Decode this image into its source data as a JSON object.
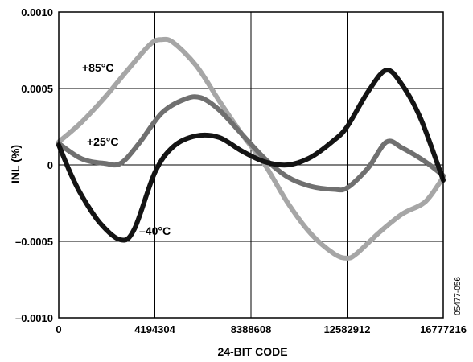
{
  "chart_data": {
    "type": "line",
    "title": "",
    "xlabel": "24-BIT CODE",
    "ylabel": "INL (%)",
    "xlim": [
      0,
      16777216
    ],
    "ylim": [
      -0.001,
      0.001
    ],
    "x_ticks": [
      0,
      4194304,
      8388608,
      12582912,
      16777216
    ],
    "x_tick_labels": [
      "0",
      "4194304",
      "8388608",
      "12582912",
      "16777216"
    ],
    "y_ticks": [
      0.001,
      0.0005,
      0,
      -0.0005,
      -0.001
    ],
    "y_tick_labels": [
      "0.0010",
      "0.0005",
      "0",
      "–0.0005",
      "–0.0010"
    ],
    "grid": true,
    "figure_id": "05477-056",
    "series": [
      {
        "name": "+85°C",
        "color": "#a6a6a6",
        "x": [
          0,
          1000000,
          2000000,
          3000000,
          4000000,
          4500000,
          5000000,
          6000000,
          7000000,
          8000000,
          9000000,
          10000000,
          11000000,
          12000000,
          12582912,
          13000000,
          14000000,
          15000000,
          16000000,
          16777216
        ],
        "y": [
          0.00015,
          0.00028,
          0.00044,
          0.00062,
          0.00079,
          0.00082,
          0.0008,
          0.00065,
          0.00042,
          0.0002,
          0.0,
          -0.00025,
          -0.00045,
          -0.00058,
          -0.00061,
          -0.00058,
          -0.00044,
          -0.00032,
          -0.00024,
          -8e-05
        ]
      },
      {
        "name": "+25°C",
        "color": "#707070",
        "x": [
          0,
          1000000,
          2000000,
          2700000,
          3500000,
          4500000,
          5500000,
          6200000,
          7000000,
          8000000,
          9000000,
          10000000,
          11000000,
          12000000,
          12582912,
          13500000,
          14300000,
          15000000,
          16000000,
          16777216
        ],
        "y": [
          0.00014,
          4e-05,
          1e-05,
          1e-05,
          0.00014,
          0.00034,
          0.00043,
          0.00044,
          0.00036,
          0.0002,
          4e-05,
          -8e-05,
          -0.00014,
          -0.00016,
          -0.00015,
          -2e-05,
          0.00015,
          0.00011,
          2e-05,
          -7e-05
        ]
      },
      {
        "name": "–40°C",
        "color": "#141414",
        "x": [
          0,
          500000,
          1000000,
          1800000,
          2700000,
          3300000,
          4194304,
          5000000,
          6000000,
          7000000,
          8000000,
          9000000,
          10000000,
          11000000,
          12000000,
          12582912,
          13500000,
          14300000,
          15000000,
          15800000,
          16777216
        ],
        "y": [
          0.00013,
          -5e-05,
          -0.0002,
          -0.00038,
          -0.00049,
          -0.00042,
          -5e-05,
          0.00012,
          0.00019,
          0.00018,
          9e-05,
          2e-05,
          0.0,
          5e-05,
          0.00016,
          0.00025,
          0.00048,
          0.00062,
          0.00052,
          0.0003,
          -0.0001
        ]
      }
    ]
  }
}
